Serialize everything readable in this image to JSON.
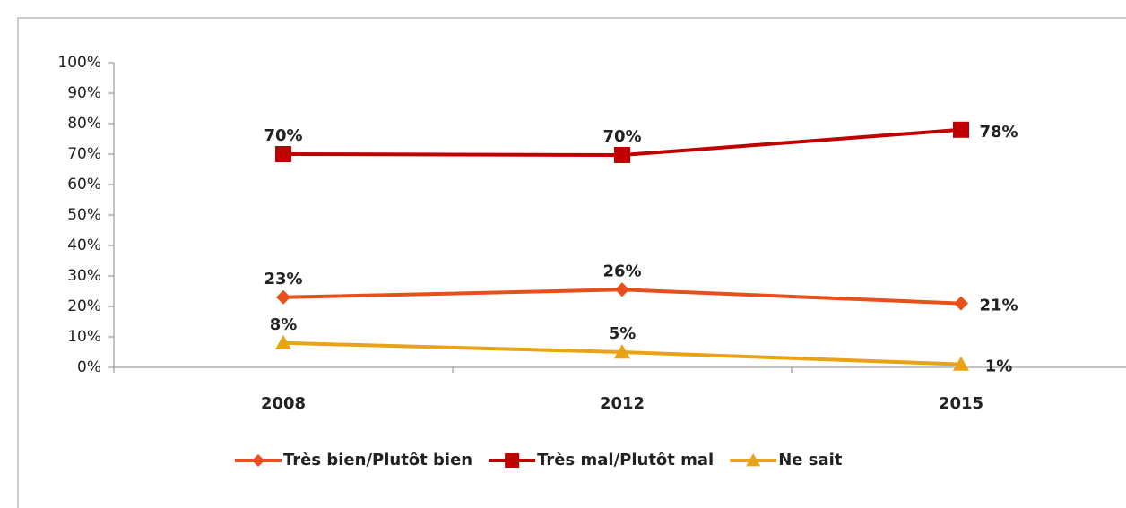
{
  "chart_data": {
    "type": "line",
    "categories": [
      "2008",
      "2012",
      "2015"
    ],
    "series": [
      {
        "name": "Très bien/Plutôt bien",
        "color": "#e8501b",
        "marker": "diamond",
        "values": [
          23,
          25.5,
          21
        ],
        "value_labels": [
          "23%",
          "26%",
          "21%"
        ]
      },
      {
        "name": "Très mal/Plutôt mal",
        "color": "#c00000",
        "marker": "square",
        "values": [
          70,
          69.7,
          78
        ],
        "value_labels": [
          "70%",
          "70%",
          "78%"
        ]
      },
      {
        "name": "Ne sait",
        "color": "#e8a317",
        "marker": "triangle",
        "values": [
          8,
          5,
          1
        ],
        "value_labels": [
          "8%",
          "5%",
          "1%"
        ]
      }
    ],
    "ylim": [
      0,
      100
    ],
    "yticks": [
      {
        "value": 0,
        "label": "0%"
      },
      {
        "value": 10,
        "label": "10%"
      },
      {
        "value": 20,
        "label": "20%"
      },
      {
        "value": 30,
        "label": "30%"
      },
      {
        "value": 40,
        "label": "40%"
      },
      {
        "value": 50,
        "label": "50%"
      },
      {
        "value": 60,
        "label": "60%"
      },
      {
        "value": 70,
        "label": "70%"
      },
      {
        "value": 80,
        "label": "80%"
      },
      {
        "value": 90,
        "label": "90%"
      },
      {
        "value": 100,
        "label": "100%"
      }
    ],
    "legend": "bottom"
  }
}
